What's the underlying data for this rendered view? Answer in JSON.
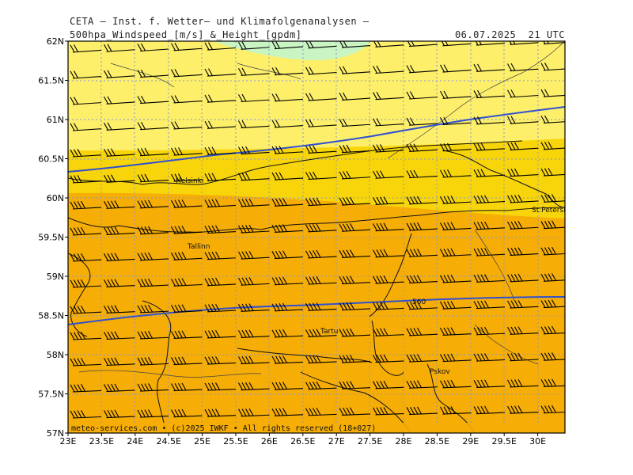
{
  "header": {
    "title_line1": "CETA — Inst. f. Wetter— und Klimafolgenanalysen —",
    "title_line2": "500hpa_Windspeed_[m/s]_&_Height_[gpdm]",
    "datetime": "06.07.2025  21 UTC"
  },
  "axes": {
    "lat_labels": [
      "62N",
      "61.5N",
      "61N",
      "60.5N",
      "60N",
      "59.5N",
      "59N",
      "58.5N",
      "58N",
      "57.5N",
      "57N"
    ],
    "lon_labels": [
      "23E",
      "23.5E",
      "24E",
      "24.5E",
      "25E",
      "25.5E",
      "26E",
      "26.5E",
      "27E",
      "27.5E",
      "28E",
      "28.5E",
      "29E",
      "29.5E",
      "30E"
    ]
  },
  "cities": [
    "Helsinki",
    "St.Petersbg.",
    "Tallinn",
    "Tartu",
    "Pskov"
  ],
  "contour_label": "560",
  "footer": "meteo-services.com • (c)2025 IWKF • All rights reserved (18+027)",
  "colors": {
    "speed_light": "#fdef6a",
    "speed_yellow": "#f8d50a",
    "speed_orange": "#f6ad06",
    "speed_green": "#c8f5c2",
    "height_contour": "#3050d0",
    "coast": "#111111",
    "grid": "#8899cc"
  }
}
